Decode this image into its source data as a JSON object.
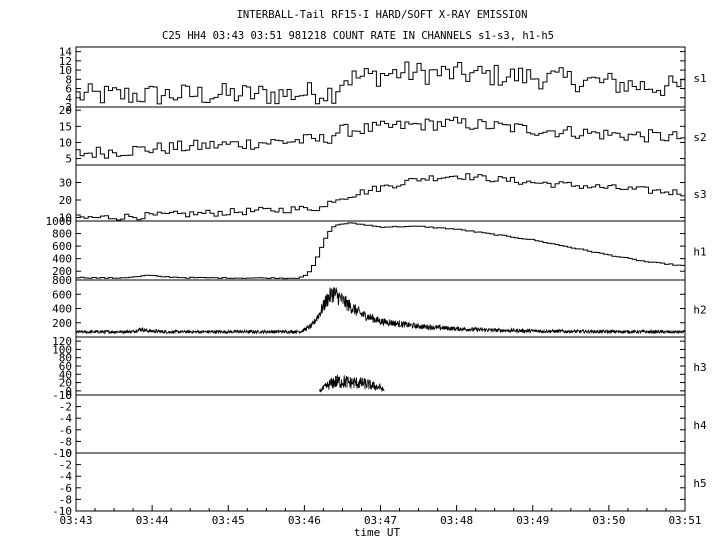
{
  "figure": {
    "title": "INTERBALL-Tail RF15-I HARD/SOFT X-RAY EMISSION",
    "subtitle": "C25 HH4 03:43 03:51 981218  COUNT RATE IN CHANNELS s1-s3, h1-h5",
    "xlabel": "time UT"
  },
  "chart_data": {
    "type": "line",
    "title": "INTERBALL-Tail RF15-I HARD/SOFT X-RAY EMISSION",
    "subtitle": "C25 HH4 03:43 03:51 981218  COUNT RATE IN CHANNELS s1-s3, h1-h5",
    "xlabel": "time UT",
    "x_ticks": [
      "03:43",
      "03:44",
      "03:45",
      "03:46",
      "03:47",
      "03:48",
      "03:49",
      "03:50",
      "03:51"
    ],
    "xlim_minutes": [
      0,
      8
    ],
    "x_unit": "minutes after 03:43 UT",
    "grid": false,
    "panels": [
      {
        "name": "s1",
        "ylim": [
          2,
          15
        ],
        "yticks": [
          "2",
          "4",
          "6",
          "8",
          "10",
          "12",
          "14"
        ],
        "style": "step",
        "profile": [
          [
            0,
            4.5
          ],
          [
            2.8,
            4.8
          ],
          [
            3.4,
            5.3
          ],
          [
            3.5,
            8.0
          ],
          [
            4.3,
            9.5
          ],
          [
            5.0,
            9.2
          ],
          [
            6.0,
            8.5
          ],
          [
            6.8,
            7.5
          ],
          [
            7.5,
            6.5
          ],
          [
            8.0,
            6.3
          ]
        ],
        "noise": 2.5
      },
      {
        "name": "s2",
        "ylim": [
          3,
          21
        ],
        "yticks": [
          "5",
          "10",
          "15",
          "20"
        ],
        "style": "step",
        "profile": [
          [
            0,
            6.5
          ],
          [
            1.0,
            8.0
          ],
          [
            2.5,
            10.0
          ],
          [
            3.3,
            11.0
          ],
          [
            3.45,
            13.5
          ],
          [
            4.5,
            15.5
          ],
          [
            5.0,
            16.0
          ],
          [
            6.0,
            14.0
          ],
          [
            7.0,
            12.5
          ],
          [
            8.0,
            11.5
          ]
        ],
        "noise": 2.0
      },
      {
        "name": "s3",
        "ylim": [
          8,
          40
        ],
        "yticks": [
          "10",
          "20",
          "30"
        ],
        "style": "step",
        "profile": [
          [
            0,
            9.5
          ],
          [
            1.0,
            11.0
          ],
          [
            2.0,
            13.0
          ],
          [
            3.0,
            15.0
          ],
          [
            3.3,
            16.0
          ],
          [
            3.35,
            20.0
          ],
          [
            4.0,
            27.0
          ],
          [
            4.5,
            32.0
          ],
          [
            5.0,
            34.0
          ],
          [
            6.0,
            30.0
          ],
          [
            7.0,
            27.0
          ],
          [
            8.0,
            24.0
          ]
        ],
        "noise": 2.0
      },
      {
        "name": "h1",
        "ylim": [
          60,
          1000
        ],
        "yticks": [
          "200",
          "400",
          "600",
          "800",
          "1000"
        ],
        "style": "step",
        "profile": [
          [
            0,
            100
          ],
          [
            0.5,
            90
          ],
          [
            0.8,
            110
          ],
          [
            0.95,
            135
          ],
          [
            1.1,
            115
          ],
          [
            1.5,
            95
          ],
          [
            2.9,
            90
          ],
          [
            3.05,
            150
          ],
          [
            3.15,
            350
          ],
          [
            3.25,
            650
          ],
          [
            3.35,
            880
          ],
          [
            3.45,
            945
          ],
          [
            3.6,
            965
          ],
          [
            3.75,
            950
          ],
          [
            4.0,
            905
          ],
          [
            4.5,
            915
          ],
          [
            5.0,
            870
          ],
          [
            6.0,
            700
          ],
          [
            7.0,
            460
          ],
          [
            7.5,
            350
          ],
          [
            8.0,
            285
          ]
        ],
        "noise": 8
      },
      {
        "name": "h2",
        "ylim": [
          0,
          800
        ],
        "yticks": [
          "200",
          "400",
          "600",
          "800"
        ],
        "style": "noisy",
        "profile": [
          [
            0,
            70
          ],
          [
            0.75,
            75
          ],
          [
            0.85,
            110
          ],
          [
            0.95,
            85
          ],
          [
            1.2,
            72
          ],
          [
            2.95,
            75
          ],
          [
            3.1,
            160
          ],
          [
            3.2,
            330
          ],
          [
            3.3,
            530
          ],
          [
            3.38,
            620
          ],
          [
            3.45,
            560
          ],
          [
            3.6,
            430
          ],
          [
            3.75,
            320
          ],
          [
            4.0,
            220
          ],
          [
            4.5,
            150
          ],
          [
            5.0,
            115
          ],
          [
            5.5,
            95
          ],
          [
            6.0,
            85
          ],
          [
            6.5,
            78
          ],
          [
            8.0,
            70
          ]
        ],
        "noise": 0.2
      },
      {
        "name": "h3",
        "ylim": [
          -10,
          130
        ],
        "yticks": [
          "-10",
          "0",
          "20",
          "40",
          "60",
          "80",
          "100",
          "120"
        ],
        "style": "noisy",
        "profile": [
          [
            3.2,
            0
          ],
          [
            3.3,
            12
          ],
          [
            3.4,
            22
          ],
          [
            3.5,
            23
          ],
          [
            3.6,
            20
          ],
          [
            3.7,
            19
          ],
          [
            3.8,
            17
          ],
          [
            3.9,
            12
          ],
          [
            4.0,
            8
          ],
          [
            4.05,
            0
          ]
        ],
        "x_range": [
          3.2,
          4.05
        ],
        "noise": 0.6
      },
      {
        "name": "h4",
        "ylim": [
          -10,
          0
        ],
        "yticks": [
          "-10",
          "-8",
          "-6",
          "-4",
          "-2",
          "0"
        ],
        "style": "none"
      },
      {
        "name": "h5",
        "ylim": [
          -10,
          0
        ],
        "yticks": [
          "-10",
          "-8",
          "-6",
          "-4",
          "-2",
          "0"
        ],
        "style": "none"
      }
    ]
  }
}
